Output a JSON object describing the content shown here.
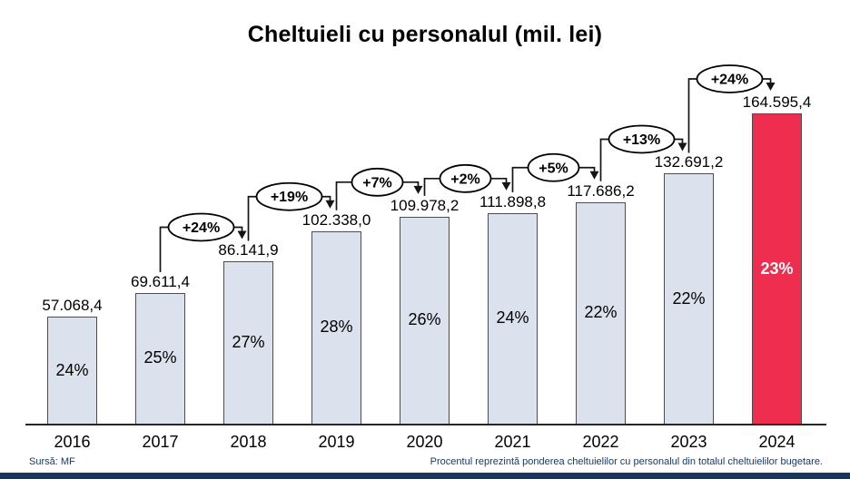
{
  "title": "Cheltuieli cu personalul (mil. lei)",
  "footer": {
    "source": "Sursă: MF",
    "note": "Procentul reprezintă ponderea cheltuielilor cu personalul din totalul cheltuielilor bugetare."
  },
  "colors": {
    "bar_fill": "#dbe1ed",
    "bar_border": "#4d4d4d",
    "highlight_fill": "#ee2d4f",
    "highlight_text": "#ffffff",
    "connector": "#141414",
    "ellipse_fill": "#ffffff",
    "ellipse_stroke": "#000000",
    "footer_accent": "#17365d",
    "footer_text": "#17365d"
  },
  "chart_data": {
    "type": "bar",
    "title": "Cheltuieli cu personalul (mil. lei)",
    "xlabel": "",
    "ylabel": "",
    "grid": false,
    "legend": false,
    "ylim": [
      0,
      164595.4
    ],
    "categories": [
      "2016",
      "2017",
      "2018",
      "2019",
      "2020",
      "2021",
      "2022",
      "2023",
      "2024"
    ],
    "values": [
      57068.4,
      69611.4,
      86141.9,
      102338.0,
      109978.2,
      111898.8,
      117686.2,
      132691.2,
      164595.4
    ],
    "value_labels": [
      "57.068,4",
      "69.611,4",
      "86.141,9",
      "102.338,0",
      "109.978,2",
      "111.898,8",
      "117.686,2",
      "132.691,2",
      "164.595,4"
    ],
    "share_labels": [
      "24%",
      "25%",
      "27%",
      "28%",
      "26%",
      "24%",
      "22%",
      "22%",
      "23%"
    ],
    "highlight_index": 8,
    "growth": [
      {
        "from_year": "2017",
        "to_year": "2018",
        "label": "+24%"
      },
      {
        "from_year": "2018",
        "to_year": "2019",
        "label": "+19%"
      },
      {
        "from_year": "2019",
        "to_year": "2020",
        "label": "+7%"
      },
      {
        "from_year": "2020",
        "to_year": "2021",
        "label": "+2%"
      },
      {
        "from_year": "2021",
        "to_year": "2022",
        "label": "+5%"
      },
      {
        "from_year": "2022",
        "to_year": "2023",
        "label": "+13%"
      },
      {
        "from_year": "2023",
        "to_year": "2024",
        "label": "+24%"
      }
    ]
  }
}
